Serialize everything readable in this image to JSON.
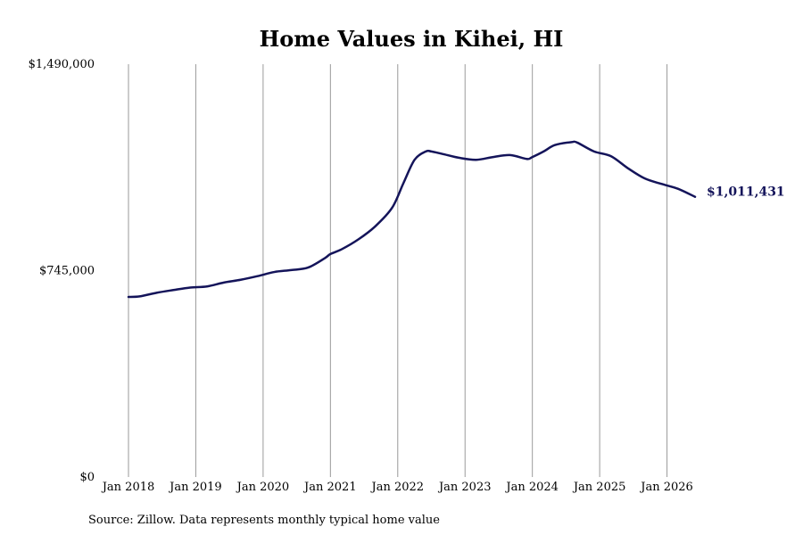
{
  "chart_data": {
    "type": "line",
    "title": "Home Values in Kihei, HI",
    "source": "Source: Zillow. Data represents monthly typical home value",
    "ylim": [
      0,
      1490000
    ],
    "yticks": [
      {
        "value": 0,
        "label": "$0"
      },
      {
        "value": 745000,
        "label": "$745,000"
      },
      {
        "value": 1490000,
        "label": "$1,490,000"
      }
    ],
    "xticks": [
      {
        "value": "2018-01",
        "label": "Jan 2018"
      },
      {
        "value": "2019-01",
        "label": "Jan 2019"
      },
      {
        "value": "2020-01",
        "label": "Jan 2020"
      },
      {
        "value": "2021-01",
        "label": "Jan 2021"
      },
      {
        "value": "2022-01",
        "label": "Jan 2022"
      },
      {
        "value": "2023-01",
        "label": "Jan 2023"
      },
      {
        "value": "2024-01",
        "label": "Jan 2024"
      },
      {
        "value": "2025-01",
        "label": "Jan 2025"
      },
      {
        "value": "2026-01",
        "label": "Jan 2026"
      }
    ],
    "grid": "vertical",
    "line_color": "#14145a",
    "end_label": "$1,011,431",
    "series": [
      {
        "x": [
          "2018-01",
          "2018-03",
          "2018-06",
          "2018-09",
          "2018-12",
          "2019-03",
          "2019-06",
          "2019-09",
          "2019-12",
          "2020-03",
          "2020-06",
          "2020-09",
          "2020-12",
          "2021-01",
          "2021-03",
          "2021-06",
          "2021-09",
          "2021-12",
          "2022-02",
          "2022-04",
          "2022-06",
          "2022-07",
          "2022-09",
          "2022-12",
          "2023-03",
          "2023-06",
          "2023-09",
          "2023-12",
          "2024-01",
          "2024-03",
          "2024-05",
          "2024-08",
          "2024-09",
          "2024-12",
          "2025-03",
          "2025-06",
          "2025-09",
          "2025-12",
          "2026-03",
          "2026-06"
        ],
        "y": [
          650000,
          652000,
          665000,
          675000,
          684000,
          688000,
          702000,
          712000,
          725000,
          740000,
          747000,
          756000,
          790000,
          805000,
          822000,
          858000,
          905000,
          972000,
          1060000,
          1145000,
          1175000,
          1175000,
          1166000,
          1152000,
          1145000,
          1155000,
          1162000,
          1148000,
          1155000,
          1175000,
          1198000,
          1209000,
          1207000,
          1175000,
          1158000,
          1115000,
          1078000,
          1058000,
          1040000,
          1011431
        ]
      }
    ]
  }
}
